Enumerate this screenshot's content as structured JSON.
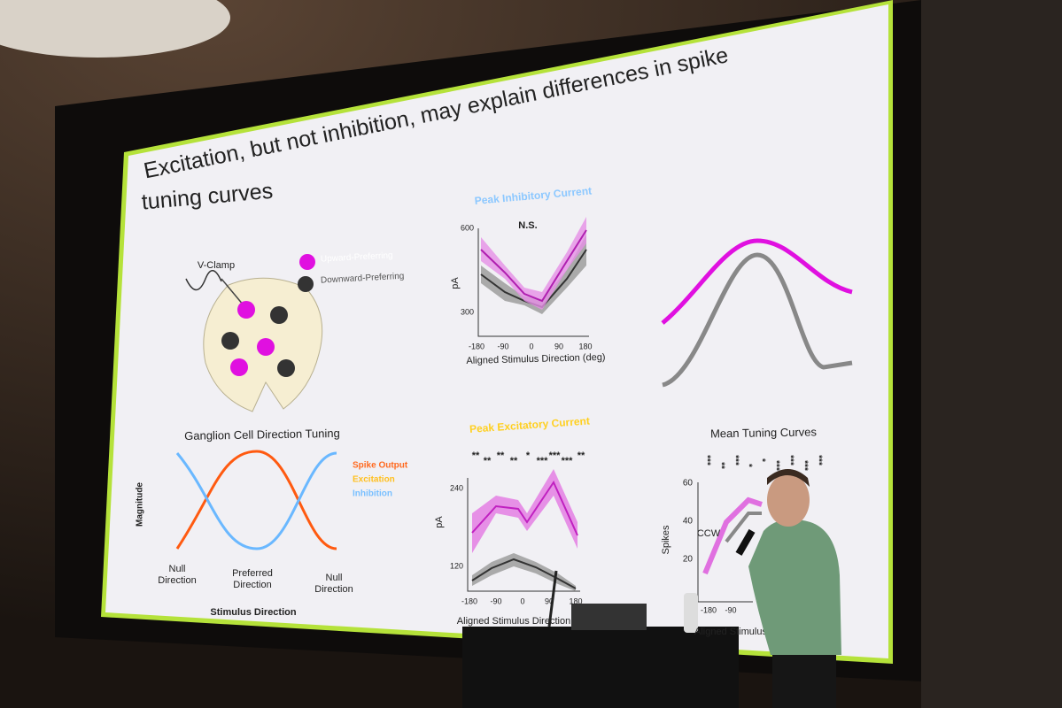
{
  "slide": {
    "title_lines": [
      "Excitation, but not inhibition, may explain differences in spike",
      "tuning curves"
    ],
    "diagram": {
      "label": "V-Clamp",
      "legend": [
        "Upward-Preferring",
        "Downward-Preferring"
      ]
    },
    "direction_tuning": {
      "title": "Ganglion Cell Direction Tuning",
      "y_label": "Magnitude",
      "x_label": "Stimulus Direction",
      "x_ticks": [
        [
          "Null",
          "Direction"
        ],
        [
          "Preferred",
          "Direction"
        ],
        [
          "Null",
          "Direction"
        ]
      ],
      "legend": [
        "Spike Output",
        "Excitation",
        "Inhibition"
      ]
    },
    "inhibitory": {
      "title": "Peak Inhibitory Current",
      "annotation": "N.S.",
      "y_label": "pA",
      "y_ticks": [
        600,
        300
      ],
      "x_ticks": [
        -180,
        -90,
        0,
        90,
        180
      ],
      "x_label": "Aligned Stimulus Direction (deg)"
    },
    "excitatory": {
      "title": "Peak Excitatory Current",
      "significance": [
        "**",
        "**",
        "**",
        "**",
        "*",
        "***",
        "***",
        "***",
        "**"
      ],
      "y_label": "pA",
      "y_ticks": [
        240,
        120
      ],
      "x_ticks": [
        -180,
        -90,
        0,
        90,
        180
      ],
      "x_label": "Aligned Stimulus Direction"
    },
    "mean_tuning": {
      "title": "Mean Tuning Curves",
      "significance": [
        "***",
        "**",
        "***",
        "*",
        "*",
        "***",
        "***",
        "***",
        "***"
      ],
      "y_label": "Spikes",
      "y_ticks": [
        60,
        40,
        20
      ],
      "x_ticks": [
        -180,
        -90
      ],
      "annotation": "CCW",
      "x_label": "Aligned Stimulus"
    }
  }
}
